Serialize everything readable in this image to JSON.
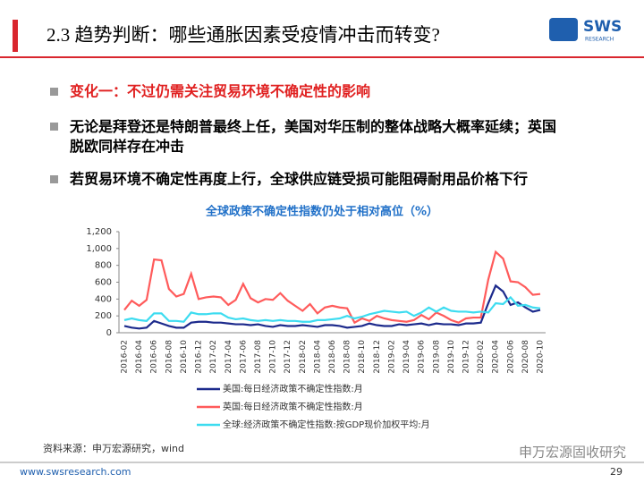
{
  "header": {
    "title": "2.3 趋势判断：哪些通胀因素受疫情冲击而转变?",
    "logo": {
      "mark": "SWS",
      "sub": "RESEARCH"
    }
  },
  "bullets": [
    "变化一：不过仍需关注贸易环境不确定性的影响",
    "无论是拜登还是特朗普最终上任，美国对华压制的整体战略大概率延续；英国脱欧同样存在冲击",
    "若贸易环境不确定性再度上行，全球供应链受损可能阻碍耐用品价格下行"
  ],
  "chart_data": {
    "type": "line",
    "title": "全球政策不确定性指数仍处于相对高位（%）",
    "categories": [
      "2016-02",
      null,
      "2016-04",
      null,
      "2016-06",
      null,
      "2016-08",
      null,
      "2016-10",
      null,
      "2016-12",
      null,
      "2017-02",
      null,
      "2017-04",
      null,
      "2017-06",
      null,
      "2017-08",
      null,
      "2017-10",
      null,
      "2017-12",
      null,
      "2018-02",
      null,
      "2018-04",
      null,
      "2018-06",
      null,
      "2018-08",
      null,
      "2018-10",
      null,
      "2018-12",
      null,
      "2019-02",
      null,
      "2019-04",
      null,
      "2019-06",
      null,
      "2019-08",
      null,
      "2019-10",
      null,
      "2019-12",
      null,
      "2020-02",
      null,
      "2020-04",
      null,
      "2020-06",
      null,
      "2020-08",
      null,
      "2020-10"
    ],
    "series": [
      {
        "name": "美国:每日经济政策不确定性指数:月",
        "color": "#1c2a8c",
        "values": [
          80,
          60,
          50,
          60,
          140,
          110,
          80,
          60,
          60,
          120,
          130,
          130,
          120,
          120,
          110,
          100,
          100,
          90,
          100,
          80,
          70,
          90,
          80,
          80,
          90,
          80,
          70,
          90,
          90,
          80,
          60,
          70,
          80,
          110,
          90,
          80,
          80,
          100,
          90,
          100,
          110,
          90,
          110,
          100,
          100,
          90,
          110,
          110,
          120,
          350,
          560,
          490,
          330,
          360,
          300,
          250,
          270
        ]
      },
      {
        "name": "英国:每日经济政策不确定性指数:月",
        "color": "#ff5b5b",
        "values": [
          270,
          380,
          320,
          390,
          870,
          860,
          520,
          430,
          460,
          700,
          400,
          420,
          430,
          420,
          330,
          390,
          580,
          410,
          360,
          400,
          390,
          470,
          380,
          320,
          260,
          340,
          230,
          300,
          320,
          300,
          290,
          120,
          170,
          140,
          200,
          170,
          150,
          140,
          130,
          150,
          210,
          160,
          240,
          200,
          150,
          120,
          170,
          180,
          180,
          630,
          960,
          880,
          610,
          600,
          540,
          450,
          460
        ]
      },
      {
        "name": "全球:经济政策不确定性指数:按GDP现价加权平均:月",
        "color": "#3ddcf0",
        "values": [
          150,
          170,
          150,
          140,
          230,
          230,
          140,
          140,
          130,
          240,
          220,
          220,
          230,
          230,
          180,
          160,
          170,
          150,
          140,
          150,
          140,
          150,
          140,
          140,
          130,
          130,
          150,
          150,
          160,
          170,
          200,
          170,
          190,
          220,
          240,
          260,
          250,
          240,
          250,
          200,
          240,
          300,
          250,
          300,
          260,
          250,
          250,
          240,
          250,
          240,
          350,
          340,
          420,
          320,
          330,
          300,
          290
        ]
      }
    ],
    "ylim": [
      0,
      1200
    ],
    "yticks": [
      0,
      200,
      400,
      600,
      800,
      {
        "value": 1000,
        "label": "1,000"
      },
      {
        "value": 1200,
        "label": "1,200"
      }
    ]
  },
  "footer": {
    "source": "资料来源：申万宏源研究，wind",
    "url": "www.swsresearch.com",
    "page": "29",
    "watermark": "申万宏源固收研究"
  }
}
